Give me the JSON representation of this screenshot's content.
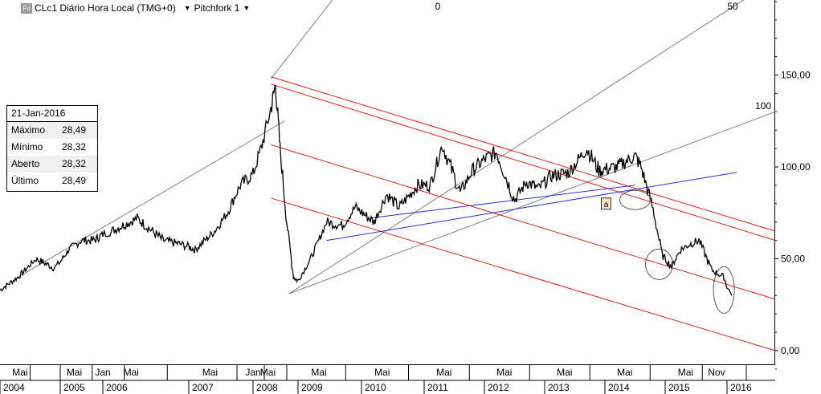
{
  "header": {
    "badge": "Fu",
    "symbol_label": "CLc1 Diário Hora Local (TMG+0)",
    "tool_label": "Pitchfork 1"
  },
  "info_box": {
    "date": "21-Jan-2016",
    "rows": [
      {
        "label": "Máximo",
        "value": "28,49"
      },
      {
        "label": "Mínimo",
        "value": "28,32"
      },
      {
        "label": "Aberto",
        "value": "28,32"
      },
      {
        "label": "Último",
        "value": "28,49"
      }
    ]
  },
  "annotations": {
    "fib_labels": [
      "0",
      "50",
      "100"
    ],
    "marker": "a"
  },
  "colors": {
    "price": "#000000",
    "pitchfork": "#e02020",
    "fan": "#808080",
    "trend": "#2a2ad8"
  },
  "chart_data": {
    "type": "line",
    "title": "",
    "xlabel": "",
    "ylabel": "",
    "ylim": [
      -10,
      190
    ],
    "y_ticks": [
      "0,00",
      "50,00",
      "100,00",
      "150,00"
    ],
    "x_month_labels": [
      "Mai",
      "Mai",
      "Jan",
      "Mai",
      "Mai",
      "Jan",
      "Mai",
      "Mai",
      "Mai",
      "Mai",
      "Mai",
      "Mai",
      "Mai",
      "Mai",
      "Nov"
    ],
    "x_year_labels": [
      "2004",
      "2005",
      "2006",
      "2007",
      "2008",
      "2009",
      "2010",
      "2011",
      "2012",
      "2013",
      "2014",
      "2015",
      "2016"
    ],
    "series": [
      {
        "x": [
          2004.0,
          2004.3,
          2004.6,
          2004.9,
          2005.2,
          2005.5,
          2005.8,
          2006.1,
          2006.4,
          2006.7,
          2006.9,
          2007.1,
          2007.4,
          2007.6,
          2007.8,
          2008.0,
          2008.2,
          2008.4,
          2008.5,
          2008.6,
          2008.75,
          2008.9,
          2009.0,
          2009.2,
          2009.45,
          2009.7,
          2009.9,
          2010.2,
          2010.4,
          2010.6,
          2010.9,
          2011.1,
          2011.3,
          2011.6,
          2011.8,
          2012.0,
          2012.2,
          2012.5,
          2012.7,
          2012.9,
          2013.1,
          2013.4,
          2013.7,
          2013.9,
          2014.2,
          2014.5,
          2014.6,
          2014.8,
          2014.95,
          2015.1,
          2015.25,
          2015.4,
          2015.55,
          2015.75,
          2015.95,
          2016.05
        ],
        "values": [
          33,
          40,
          50,
          45,
          55,
          60,
          60,
          65,
          72,
          60,
          58,
          55,
          65,
          75,
          90,
          96,
          112,
          132,
          145,
          110,
          70,
          40,
          38,
          50,
          70,
          68,
          78,
          70,
          85,
          78,
          90,
          90,
          112,
          86,
          98,
          104,
          108,
          82,
          92,
          88,
          95,
          97,
          110,
          98,
          100,
          106,
          100,
          77,
          52,
          46,
          55,
          58,
          60,
          44,
          40,
          30
        ]
      }
    ]
  }
}
